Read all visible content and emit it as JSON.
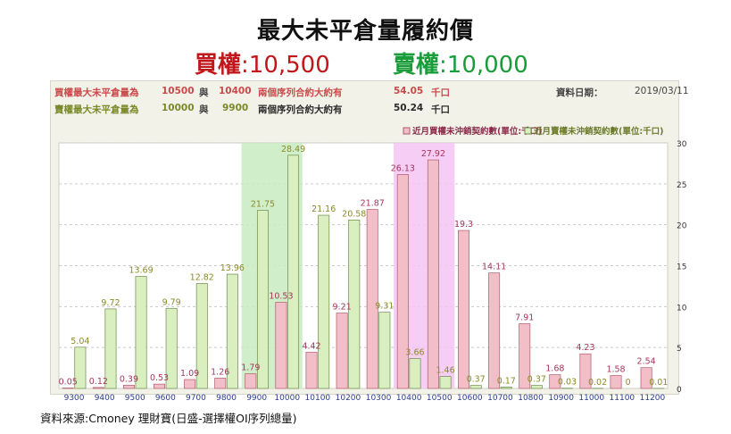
{
  "title": "最大未平倉量履約價",
  "subtitle": {
    "call_label": "買權",
    "call_value": ":10,500",
    "put_label": "賣權",
    "put_value": ":10,000"
  },
  "info": {
    "call_line": {
      "label": "買權最大未平倉量為",
      "strike1": "10500",
      "conj": "與",
      "strike2": "10400",
      "desc": "兩個序列合約大約有",
      "amount": "54.05",
      "unit": "千口"
    },
    "put_line": {
      "label": "賣權最大未平倉量為",
      "strike1": "10000",
      "conj": "與",
      "strike2": "9900",
      "desc": "兩個序列合約大約有",
      "amount": "50.24",
      "unit": "千口"
    },
    "date_label": "資料日期：",
    "date_value": "2019/03/11"
  },
  "source": "資料來源:Cmoney 理財寶(日盛-選擇權OI序列總量)",
  "colors": {
    "call_bar": "#f2bfc9",
    "call_border": "#b05a6a",
    "put_bar": "#d9efc0",
    "put_border": "#6e8a4a",
    "call_label": "#a3375a",
    "put_label": "#8a8a2a",
    "call_highlight": "#f3c4f3",
    "put_highlight": "#c8ebc0"
  },
  "chart_data": {
    "type": "bar",
    "categories": [
      "9300",
      "9400",
      "9500",
      "9600",
      "9700",
      "9800",
      "9900",
      "10000",
      "10100",
      "10200",
      "10300",
      "10400",
      "10500",
      "10600",
      "10700",
      "10800",
      "10900",
      "11000",
      "11100",
      "11200"
    ],
    "series": [
      {
        "name": "近月買權未沖銷契約數(單位:千口)",
        "values": [
          0.05,
          0.12,
          0.39,
          0.53,
          1.09,
          1.26,
          1.79,
          10.53,
          4.42,
          9.21,
          21.87,
          26.13,
          27.92,
          19.3,
          14.11,
          7.91,
          1.68,
          4.23,
          1.58,
          2.54
        ]
      },
      {
        "name": "近月賣權未沖銷契約數(單位:千口)",
        "values": [
          5.04,
          9.72,
          13.69,
          9.79,
          12.82,
          13.96,
          21.75,
          28.49,
          21.16,
          20.58,
          9.31,
          3.66,
          1.46,
          0.37,
          0.17,
          0.37,
          0.03,
          0.02,
          0,
          0.01
        ]
      }
    ],
    "ylim": [
      0,
      30
    ],
    "yticks": [
      0,
      5,
      10,
      15,
      20,
      25,
      30
    ],
    "highlight_put": [
      "9900",
      "10000"
    ],
    "highlight_call": [
      "10400",
      "10500"
    ],
    "legend_position": "top-right",
    "grid": true
  }
}
